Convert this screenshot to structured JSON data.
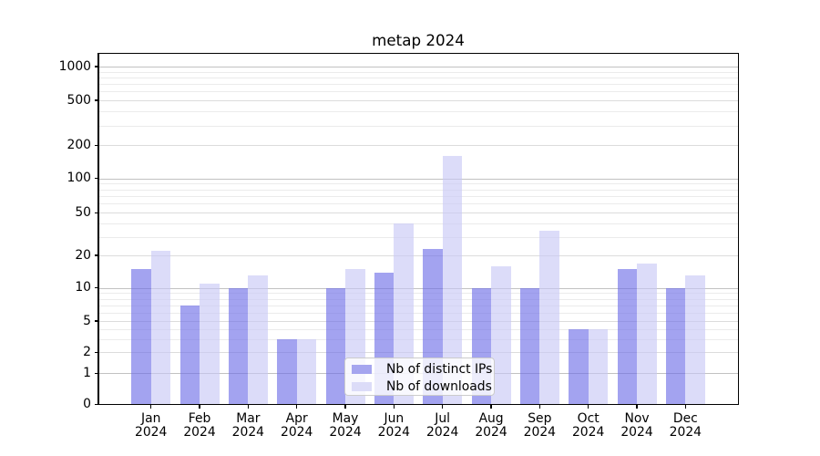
{
  "chart_data": {
    "type": "bar",
    "title": "metap 2024",
    "categories": [
      "Jan 2024",
      "Feb 2024",
      "Mar 2024",
      "Apr 2024",
      "May 2024",
      "Jun 2024",
      "Jul 2024",
      "Aug 2024",
      "Sep 2024",
      "Oct 2024",
      "Nov 2024",
      "Dec 2024"
    ],
    "months": [
      "Jan",
      "Feb",
      "Mar",
      "Apr",
      "May",
      "Jun",
      "Jul",
      "Aug",
      "Sep",
      "Oct",
      "Nov",
      "Dec"
    ],
    "year": "2024",
    "series": [
      {
        "name": "Nb of distinct IPs",
        "values": [
          15,
          7,
          10,
          3,
          10,
          14,
          23,
          10,
          10,
          4,
          15,
          10
        ],
        "fill": "rgba(110,110,231,0.63)",
        "legend_color": "#a5a5ef"
      },
      {
        "name": "Nb of downloads",
        "values": [
          22,
          11,
          13,
          3,
          15,
          40,
          160,
          16,
          34,
          4,
          17,
          13
        ],
        "fill": "rgba(199,199,245,0.63)",
        "legend_color": "#dcdcf8"
      }
    ],
    "xlabel": "",
    "ylabel": "",
    "y_ticks": [
      0,
      1,
      2,
      5,
      10,
      20,
      50,
      100,
      200,
      500,
      1000
    ],
    "y_tick_labels": [
      "0",
      "1",
      "2",
      "5",
      "10",
      "20",
      "50",
      "100",
      "200",
      "500",
      "1000"
    ],
    "yscale": "symlog-like (log10(1+x))",
    "ylim": [
      0,
      1300
    ],
    "grid": "on",
    "legend_position": "lower center inside plot"
  }
}
